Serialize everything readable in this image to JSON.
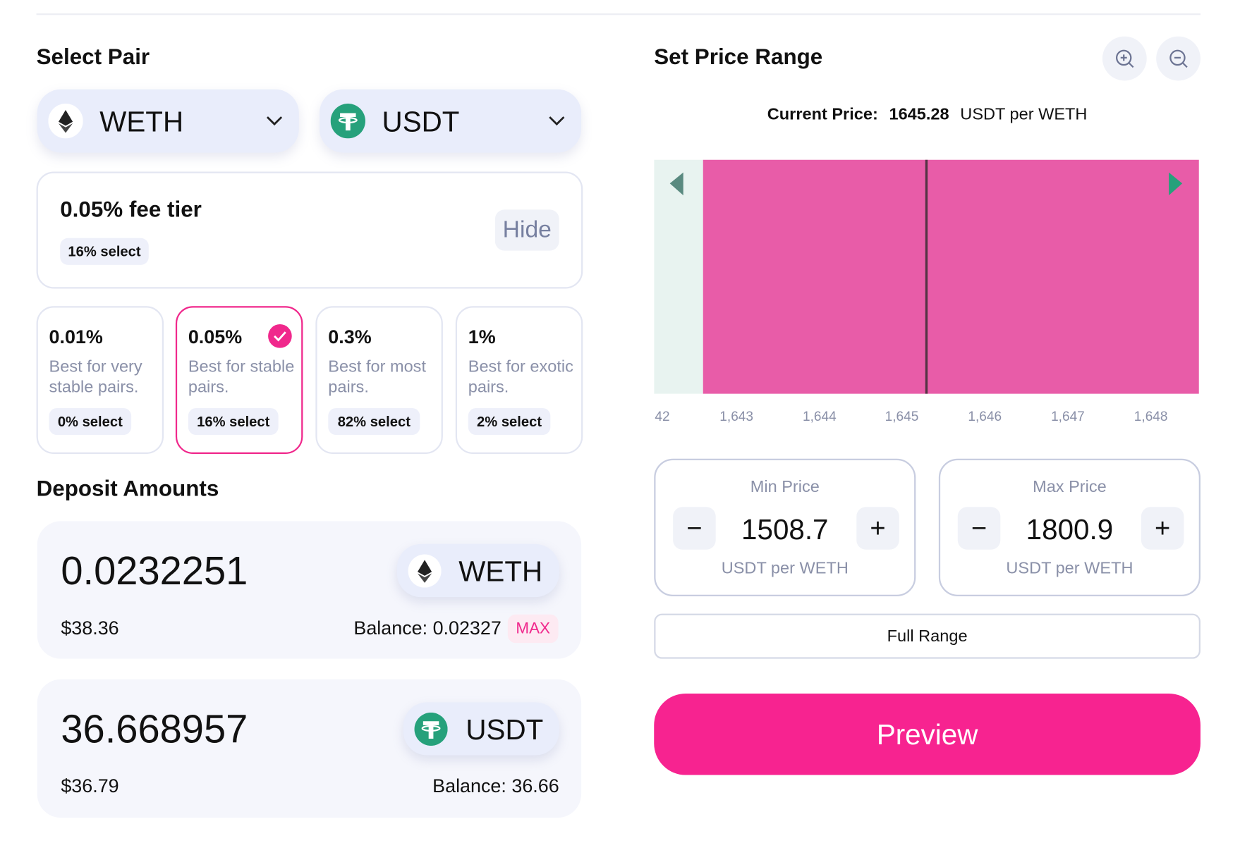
{
  "pair": {
    "title": "Select Pair",
    "token_a": "WETH",
    "token_b": "USDT"
  },
  "fee": {
    "selected_label": "0.05% fee tier",
    "selected_badge": "16% select",
    "toggle": "Hide",
    "tiers": [
      {
        "fee": "0.01%",
        "desc": "Best for very stable pairs.",
        "badge": "0% select"
      },
      {
        "fee": "0.05%",
        "desc": "Best for stable pairs.",
        "badge": "16% select"
      },
      {
        "fee": "0.3%",
        "desc": "Best for most pairs.",
        "badge": "82% select"
      },
      {
        "fee": "1%",
        "desc": "Best for exotic pairs.",
        "badge": "2% select"
      }
    ]
  },
  "deposit": {
    "title": "Deposit Amounts",
    "inputs": [
      {
        "amount": "0.0232251",
        "token": "WETH",
        "usd": "$38.36",
        "balance": "Balance: 0.02327",
        "max": "MAX"
      },
      {
        "amount": "36.668957",
        "token": "USDT",
        "usd": "$36.79",
        "balance": "Balance: 36.66"
      }
    ]
  },
  "range": {
    "title": "Set Price Range",
    "current_label": "Current Price:",
    "current_value": "1645.28",
    "current_unit": "USDT per WETH",
    "axis_labels": [
      "42",
      "1,643",
      "1,644",
      "1,645",
      "1,646",
      "1,647",
      "1,648"
    ],
    "min": {
      "label": "Min Price",
      "value": "1508.7",
      "unit": "USDT per WETH"
    },
    "max": {
      "label": "Max Price",
      "value": "1800.9",
      "unit": "USDT per WETH"
    },
    "full_range": "Full Range",
    "preview": "Preview"
  }
}
